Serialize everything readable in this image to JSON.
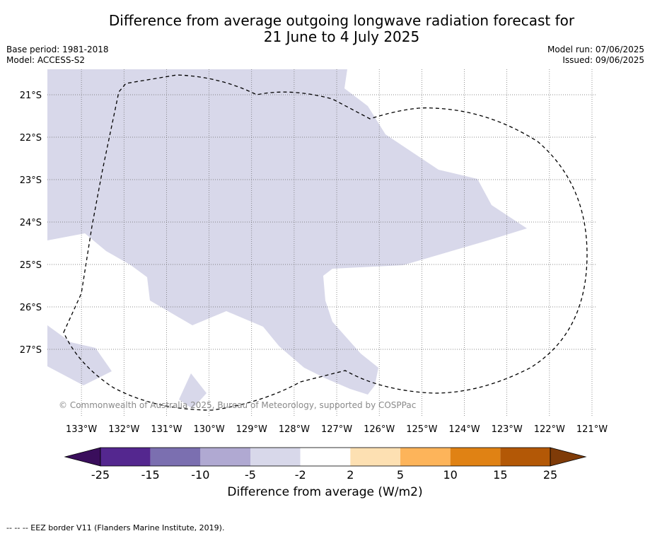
{
  "title": {
    "line1": "Difference from average outgoing longwave radiation forecast for",
    "line2": "21 June to 4 July 2025"
  },
  "meta_left": {
    "base_period": "Base period: 1981-2018",
    "model": "Model: ACCESS-S2"
  },
  "meta_right": {
    "model_run": "Model run: 07/06/2025",
    "issued": "Issued: 09/06/2025"
  },
  "copyright": "© Commonwealth of Australia 2025, Bureau of Meteorology, supported by COSPPac",
  "colors": {
    "land_fill": "#d8d8ea",
    "ocean": "#ffffff",
    "eez_line": "#000000"
  },
  "chart_data": {
    "type": "heatmap",
    "projection": "map",
    "xlabel_ticks": [
      "133°W",
      "132°W",
      "131°W",
      "130°W",
      "129°W",
      "128°W",
      "127°W",
      "126°W",
      "125°W",
      "124°W",
      "123°W",
      "122°W",
      "121°W"
    ],
    "x_values": [
      -133,
      -132,
      -131,
      -130,
      -129,
      -128,
      -127,
      -126,
      -125,
      -124,
      -123,
      -122,
      -121
    ],
    "ylabel_ticks": [
      "21°S",
      "22°S",
      "23°S",
      "24°S",
      "25°S",
      "26°S",
      "27°S"
    ],
    "y_values": [
      -21,
      -22,
      -23,
      -24,
      -25,
      -26,
      -27
    ],
    "xlim": [
      -133.8,
      -120.9
    ],
    "ylim": [
      -28.6,
      -20.4
    ],
    "grid": true,
    "field_category": "-5 to -2",
    "colorbar": {
      "title": "Difference from average (W/m2)",
      "ticks": [
        "-25",
        "-15",
        "-10",
        "-5",
        "-2",
        "2",
        "5",
        "10",
        "15",
        "25"
      ],
      "bins": [
        {
          "range": "<-25",
          "color": "#3a0e5c"
        },
        {
          "range": "-25 to -15",
          "color": "#54278f"
        },
        {
          "range": "-15 to -10",
          "color": "#7b6fb0"
        },
        {
          "range": "-10 to -5",
          "color": "#b0a9d2"
        },
        {
          "range": "-5 to -2",
          "color": "#d8d8ea"
        },
        {
          "range": "-2 to 2",
          "color": "#ffffff"
        },
        {
          "range": "2 to 5",
          "color": "#fde0b2"
        },
        {
          "range": "5 to 10",
          "color": "#fdb45a"
        },
        {
          "range": "10 to 15",
          "color": "#e08214"
        },
        {
          "range": "15 to 25",
          "color": "#b35806"
        },
        {
          "range": ">25",
          "color": "#7f3b08"
        }
      ]
    },
    "legend": "--  --  -- EEZ border V11 (Flanders Marine Institute, 2019)."
  }
}
